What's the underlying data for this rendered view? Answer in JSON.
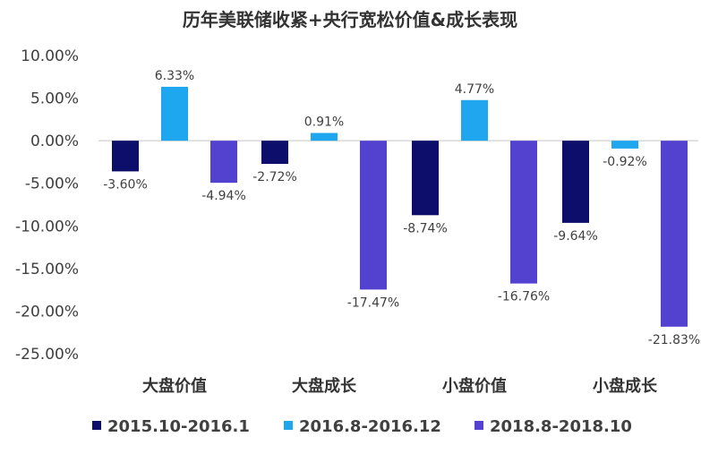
{
  "chart_data": {
    "type": "bar",
    "title": "历年美联储收紧+央行宽松价值&成长表现",
    "categories": [
      "大盘价值",
      "大盘成长",
      "小盘价值",
      "小盘成长"
    ],
    "series": [
      {
        "name": "2015.10-2016.1",
        "color": "#0d0d6b",
        "values": [
          -3.6,
          -2.72,
          -8.74,
          -9.64
        ],
        "labels": [
          "-3.60%",
          "-2.72%",
          "-8.74%",
          "-9.64%"
        ]
      },
      {
        "name": "2016.8-2016.12",
        "color": "#1ea7ef",
        "values": [
          6.33,
          0.91,
          4.77,
          -0.92
        ],
        "labels": [
          "6.33%",
          "0.91%",
          "4.77%",
          "-0.92%"
        ]
      },
      {
        "name": "2018.8-2018.10",
        "color": "#5242cf",
        "values": [
          -4.94,
          -17.47,
          -16.76,
          -21.83
        ],
        "labels": [
          "-4.94%",
          "-17.47%",
          "-16.76%",
          "-21.83%"
        ]
      }
    ],
    "yticks": [
      10,
      5,
      0,
      -5,
      -10,
      -15,
      -20,
      -25
    ],
    "ytick_labels": [
      "10.00%",
      "5.00%",
      "0.00%",
      "-5.00%",
      "-10.00%",
      "-15.00%",
      "-20.00%",
      "-25.00%"
    ],
    "ylim": [
      -25,
      10
    ],
    "grid": false,
    "legend_position": "bottom"
  }
}
